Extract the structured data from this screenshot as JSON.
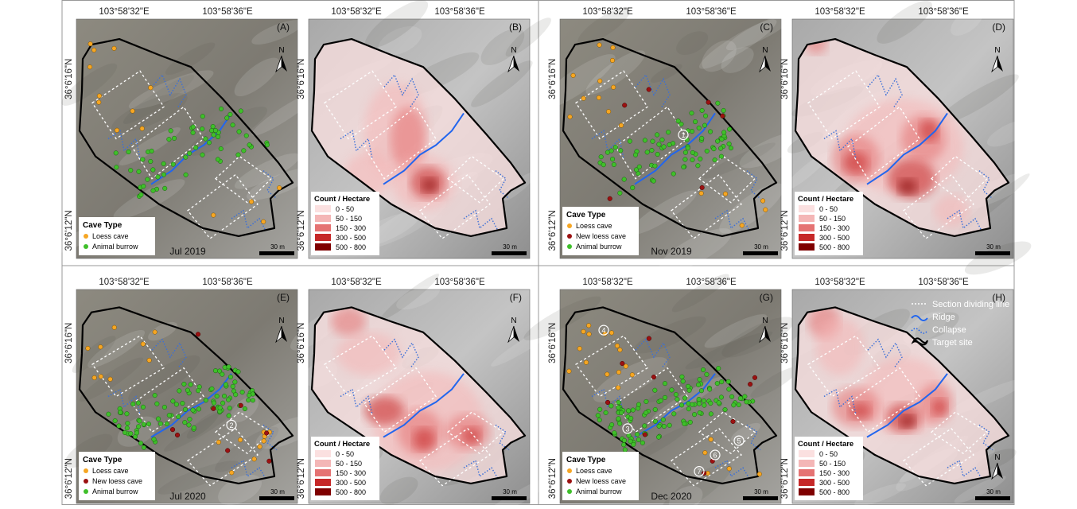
{
  "coordinates": {
    "x": [
      "103°58'32\"E",
      "103°58'36\"E"
    ],
    "y": [
      "36°6'16\"N",
      "36°6'12\"N"
    ]
  },
  "north": "N",
  "scale": "30 m",
  "density_legend": {
    "title": "Count / Hectare",
    "items": [
      "0 - 50",
      "50 - 150",
      "150 - 300",
      "300 - 500",
      "500 - 800"
    ]
  },
  "map_key": [
    "Section dividing line",
    "Ridge",
    "Collapse",
    "Target site"
  ],
  "panels": [
    {
      "label": "(A)",
      "kind": "points",
      "date": "Jul 2019",
      "legend": {
        "title": "Cave Type",
        "items": [
          "Loess cave",
          "Animal burrow"
        ]
      },
      "markers": []
    },
    {
      "label": "(B)",
      "kind": "density"
    },
    {
      "label": "(C)",
      "kind": "points",
      "date": "Nov 2019",
      "legend": {
        "title": "Cave Type",
        "items": [
          "Loess cave",
          "New loess cave",
          "Animal burrow"
        ]
      },
      "markers": [
        "1"
      ]
    },
    {
      "label": "(D)",
      "kind": "density"
    },
    {
      "label": "(E)",
      "kind": "points",
      "date": "Jul 2020",
      "legend": {
        "title": "Cave Type",
        "items": [
          "Loess cave",
          "New loess cave",
          "Animal burrow"
        ]
      },
      "markers": [
        "2"
      ]
    },
    {
      "label": "(F)",
      "kind": "density"
    },
    {
      "label": "(G)",
      "kind": "points",
      "date": "Dec 2020",
      "legend": {
        "title": "Cave Type",
        "items": [
          "Loess cave",
          "New loess cave",
          "Animal burrow"
        ]
      },
      "markers": [
        "3",
        "4",
        "5",
        "6",
        "7"
      ]
    },
    {
      "label": "(H)",
      "kind": "density"
    }
  ]
}
